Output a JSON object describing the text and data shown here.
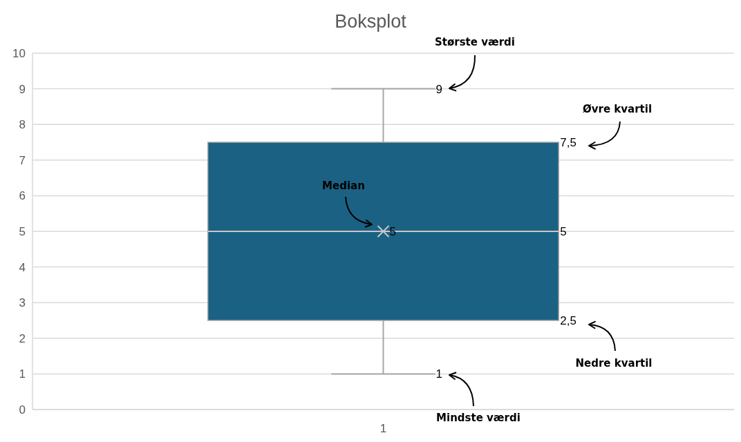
{
  "chart_data": {
    "type": "box",
    "title": "Boksplot",
    "categories": [
      "1"
    ],
    "boxes": [
      {
        "low": 1,
        "q1": 2.5,
        "median": 5,
        "q3": 7.5,
        "high": 9,
        "mean": 5
      }
    ],
    "color": "#1b6183",
    "ylim": [
      0,
      10
    ],
    "yticks": [
      0,
      1,
      2,
      3,
      4,
      5,
      6,
      7,
      8,
      9,
      10
    ],
    "grid": "y",
    "marker": "cross",
    "annotations": [
      "9",
      "7,5",
      "5",
      "5",
      "2,5",
      "1",
      "Største værdi",
      "Øvre kvartil",
      "Median",
      "Nedre kvartil",
      "Mindste værdi"
    ]
  }
}
